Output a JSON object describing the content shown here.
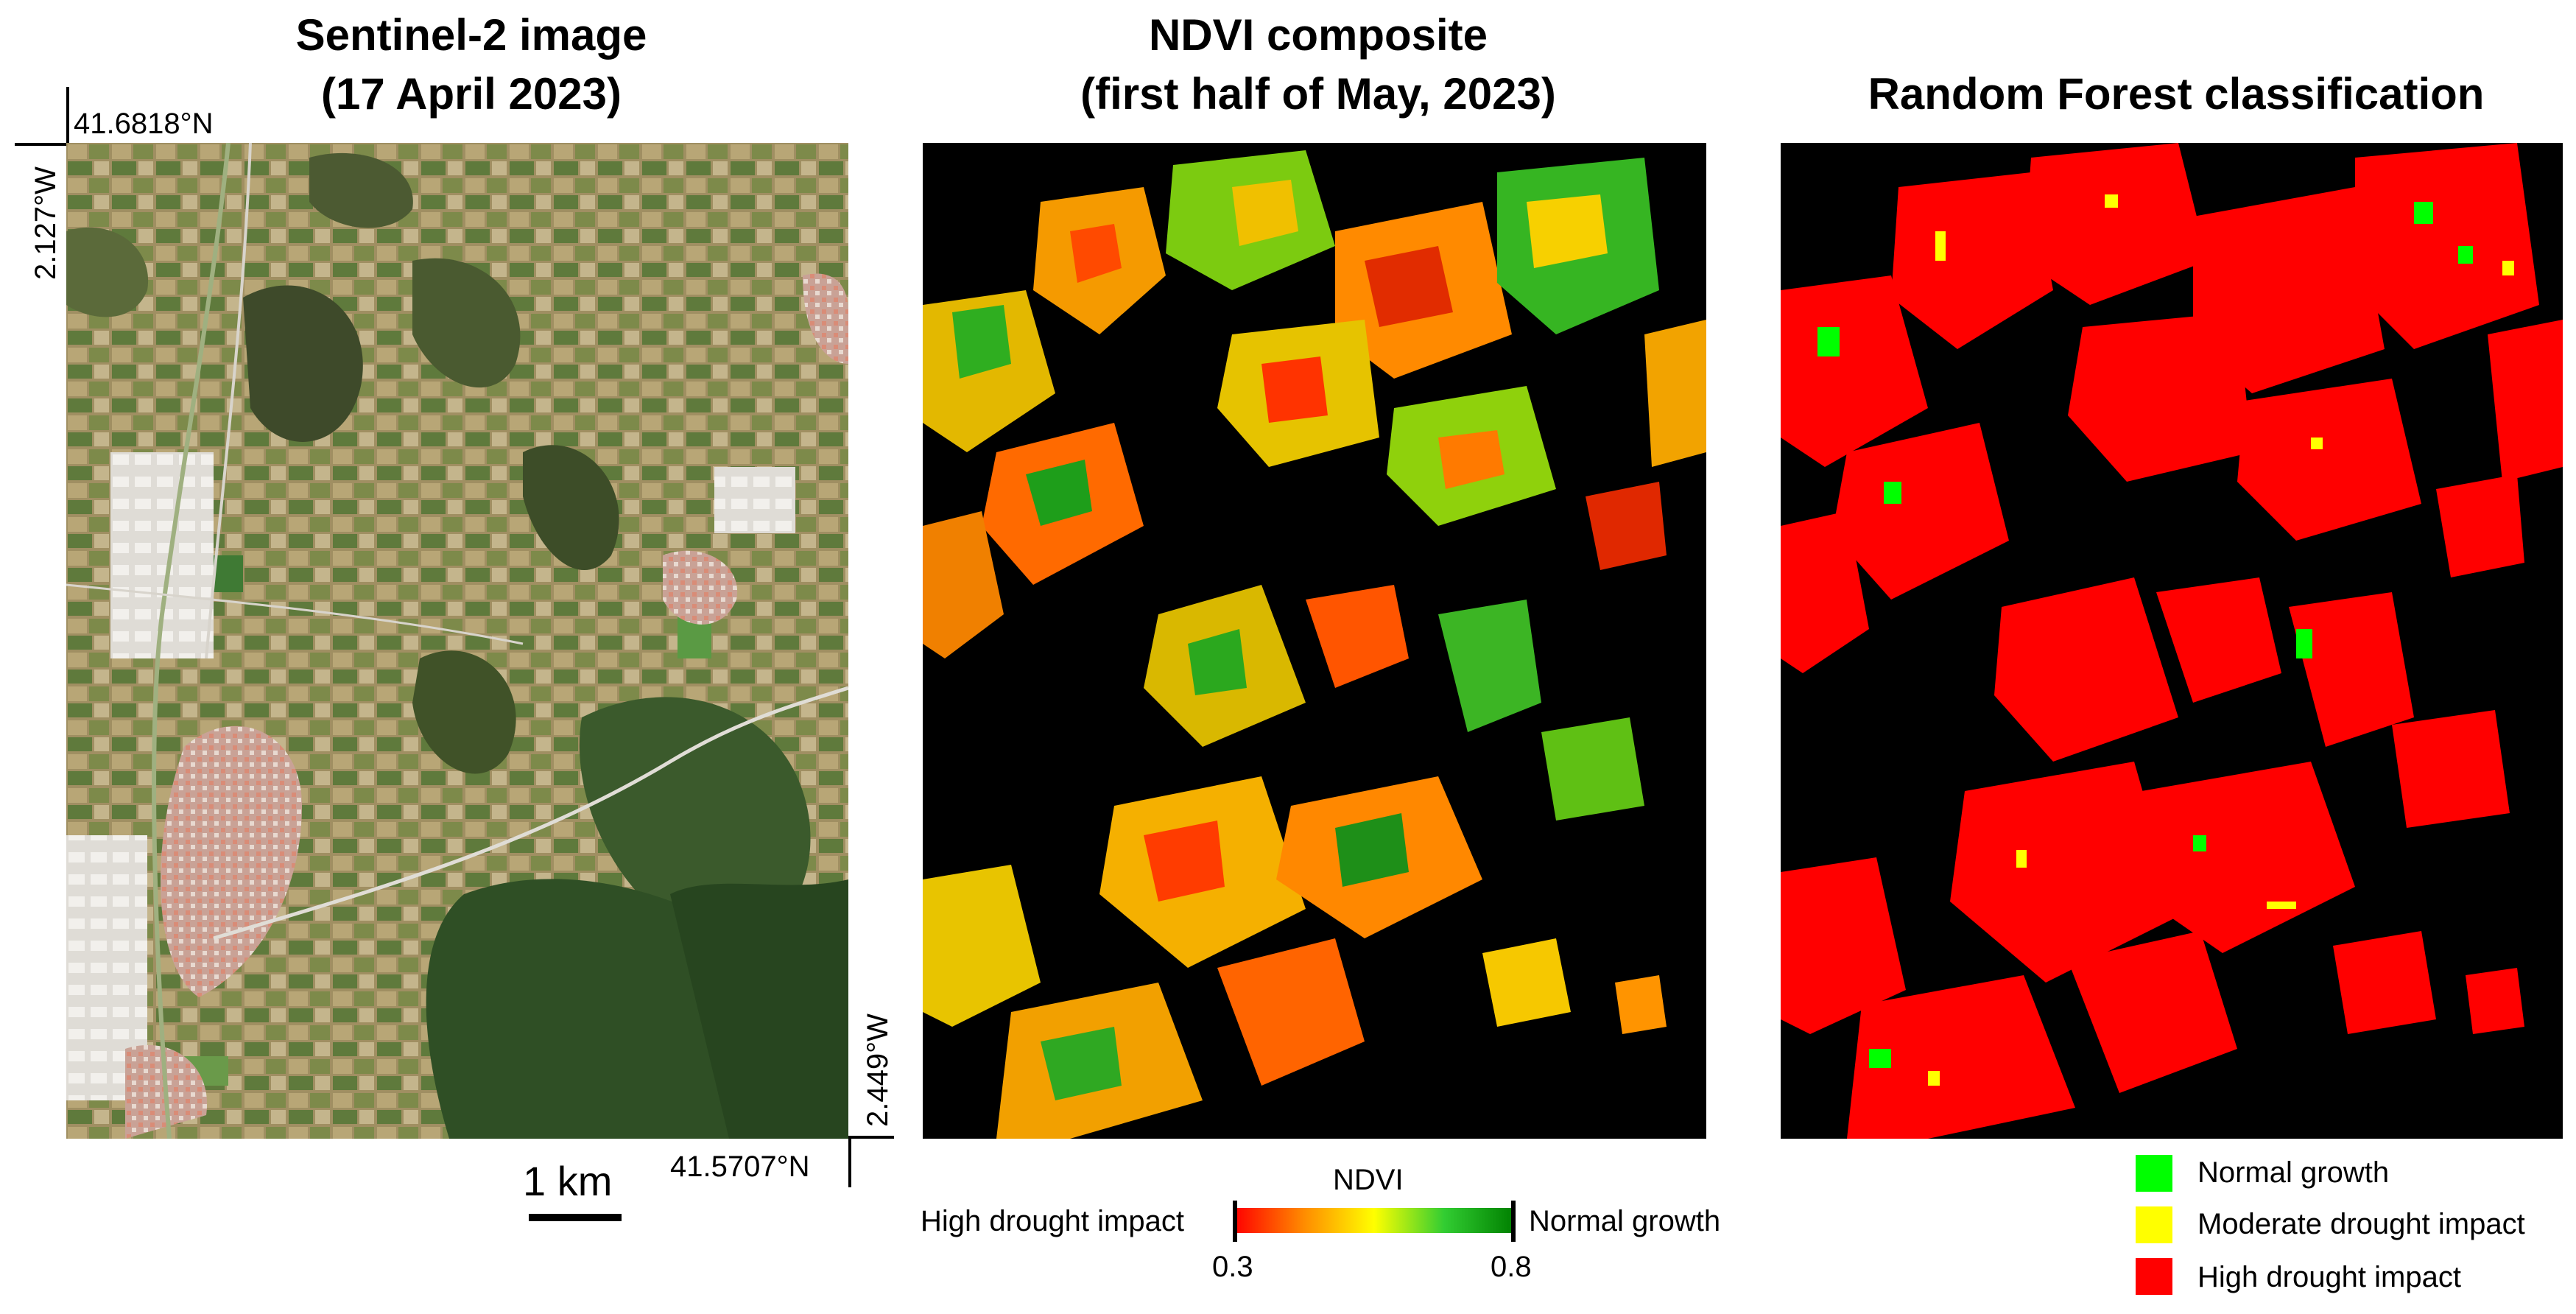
{
  "panels": {
    "sentinel": {
      "title_line1": "Sentinel-2 image",
      "title_line2": "(17 April 2023)",
      "coords": {
        "top_lat": "41.6818°N",
        "left_lon": "2.127°W",
        "bottom_lat": "41.5707°N",
        "right_lon": "2.449°W"
      },
      "scale_bar_label": "1 km"
    },
    "ndvi": {
      "title_line1": "NDVI composite",
      "title_line2": "(first half of May, 2023)",
      "colorbar": {
        "title": "NDVI",
        "min_label": "0.3",
        "max_label": "0.8",
        "left_label": "High drought impact",
        "right_label": "Normal growth",
        "stops": [
          "#ff0000",
          "#ff8c00",
          "#ffff00",
          "#32cd32",
          "#008000"
        ]
      }
    },
    "rf": {
      "title": "Random Forest classification",
      "legend": [
        {
          "label": "Normal growth",
          "color": "#00ff00"
        },
        {
          "label": "Moderate drought impact",
          "color": "#ffff00"
        },
        {
          "label": "High drought impact",
          "color": "#ff0000"
        }
      ]
    }
  }
}
